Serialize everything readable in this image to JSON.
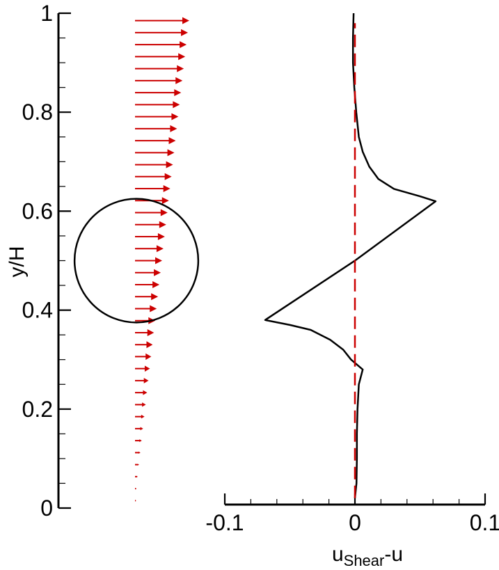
{
  "chart_data": {
    "type": "line",
    "y_axis": {
      "label": "y/H",
      "range": [
        0,
        1
      ],
      "ticks": [
        0,
        0.2,
        0.4,
        0.6,
        0.8,
        1
      ],
      "tick_labels": [
        "0",
        "0.2",
        "0.4",
        "0.6",
        "0.8",
        "1"
      ],
      "minor_step": 0.05
    },
    "x_axis": {
      "label_main": "u",
      "label_sub": "Shear",
      "label_tail": "-u",
      "range": [
        -0.1,
        0.1
      ],
      "ticks": [
        -0.1,
        0,
        0.1
      ],
      "tick_labels": [
        "-0.1",
        "0",
        "0.1"
      ],
      "minor_step": 0.02
    },
    "cylinder": {
      "center_y": 0.5,
      "radius_y": 0.125
    },
    "shear_vectors": {
      "color": "#cc0000",
      "count": 41,
      "y_start": 0.015,
      "y_end": 0.985,
      "u_at_bottom": 0.0,
      "u_at_top": 1.0
    },
    "series": [
      {
        "color": "#000000",
        "style": "solid",
        "points": [
          [
            0.0,
            0.02
          ],
          [
            0.0012,
            0.05
          ],
          [
            0.0015,
            0.1
          ],
          [
            0.0015,
            0.15
          ],
          [
            0.002,
            0.2
          ],
          [
            0.003,
            0.25
          ],
          [
            0.006,
            0.28
          ],
          [
            -0.003,
            0.3
          ],
          [
            -0.009,
            0.32
          ],
          [
            -0.019,
            0.34
          ],
          [
            -0.034,
            0.36
          ],
          [
            -0.05,
            0.37
          ],
          [
            -0.069,
            0.38
          ],
          [
            0.0,
            0.5
          ],
          [
            0.062,
            0.62
          ],
          [
            0.05,
            0.63
          ],
          [
            0.03,
            0.645
          ],
          [
            0.018,
            0.665
          ],
          [
            0.011,
            0.69
          ],
          [
            0.006,
            0.72
          ],
          [
            0.003,
            0.75
          ],
          [
            0.001,
            0.8
          ],
          [
            -0.0005,
            0.85
          ],
          [
            -0.0015,
            0.9
          ],
          [
            -0.0015,
            0.95
          ],
          [
            -0.001,
            1.0
          ]
        ]
      },
      {
        "color": "#cc0000",
        "style": "dashed",
        "points": [
          [
            0,
            0.02
          ],
          [
            0,
            0.98
          ]
        ]
      }
    ]
  }
}
